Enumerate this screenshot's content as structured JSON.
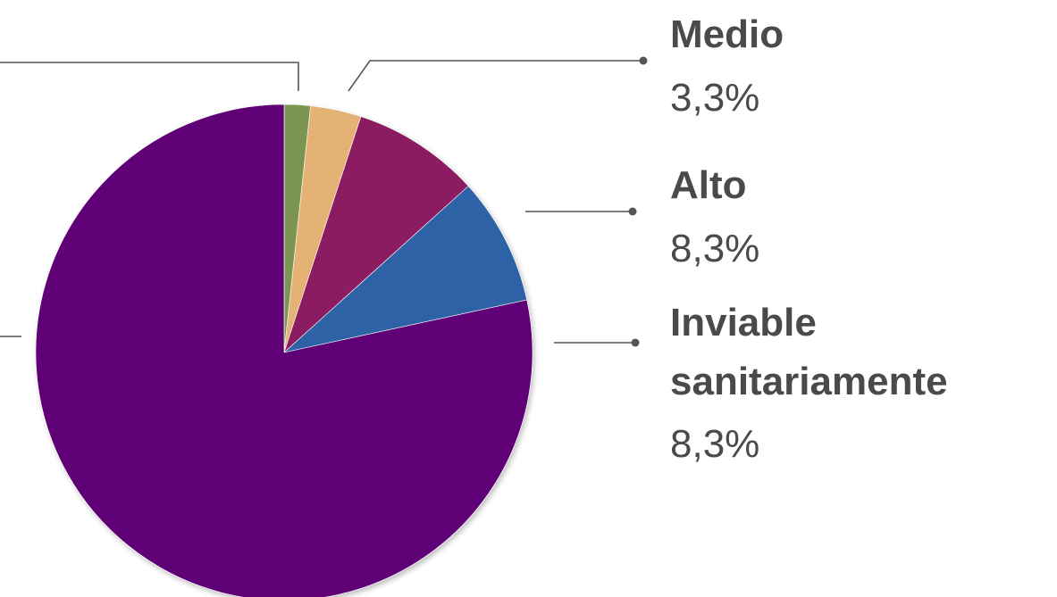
{
  "chart_data": {
    "type": "pie",
    "title": "",
    "slices": [
      {
        "label": "",
        "value": 1.7,
        "value_label": "",
        "color": "#7c9551"
      },
      {
        "label": "Medio",
        "value": 3.3,
        "value_label": "3,3%",
        "color": "#e5b275"
      },
      {
        "label": "Alto",
        "value": 8.3,
        "value_label": "8,3%",
        "color": "#8c1c62"
      },
      {
        "label": "Inviable sanitariamente",
        "value": 8.3,
        "value_label": "8,3%",
        "color": "#2e62a6"
      },
      {
        "label": "",
        "value": 78.4,
        "value_label": "",
        "color": "#5e0077"
      }
    ],
    "start_angle": "12 o'clock",
    "direction": "clockwise"
  },
  "labels": {
    "medio": {
      "name": "Medio",
      "value": "3,3%"
    },
    "alto": {
      "name": "Alto",
      "value": "8,3%"
    },
    "inviable": {
      "name_line1": "Inviable",
      "name_line2": "sanitariamente",
      "value": "8,3%"
    }
  }
}
